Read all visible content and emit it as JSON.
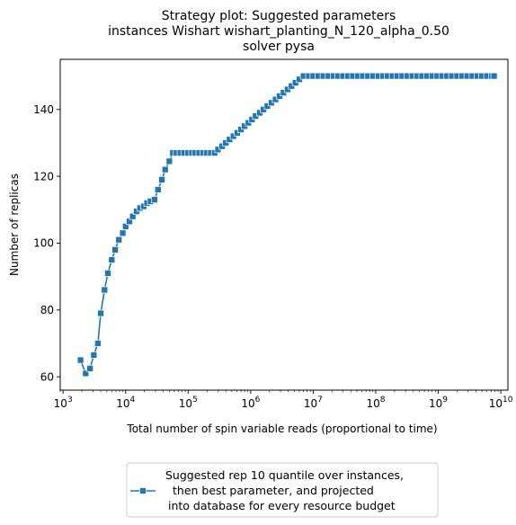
{
  "chart_data": {
    "type": "line",
    "title_lines": [
      "Strategy plot: Suggested parameters",
      "instances Wishart wishart_planting_N_120_alpha_0.50",
      "solver pysa"
    ],
    "xlabel": "Total number of spin variable reads (proportional to time)",
    "ylabel": "Number of replicas",
    "x_scale": "log",
    "xlim": [
      900,
      13000000000
    ],
    "ylim": [
      56,
      155
    ],
    "x_ticks": [
      {
        "base": "10",
        "exp": "3"
      },
      {
        "base": "10",
        "exp": "4"
      },
      {
        "base": "10",
        "exp": "5"
      },
      {
        "base": "10",
        "exp": "6"
      },
      {
        "base": "10",
        "exp": "7"
      },
      {
        "base": "10",
        "exp": "8"
      },
      {
        "base": "10",
        "exp": "9"
      },
      {
        "base": "10",
        "exp": "10"
      }
    ],
    "x_tick_values": [
      1000,
      10000,
      100000,
      1000000,
      10000000,
      100000000,
      1000000000,
      10000000000
    ],
    "y_ticks": [
      "60",
      "80",
      "100",
      "120",
      "140"
    ],
    "y_tick_values": [
      60,
      80,
      100,
      120,
      140
    ],
    "grid": false,
    "legend_position": "below",
    "series": [
      {
        "name_lines": [
          "Suggested rep 10 quantile over instances,",
          "then best parameter, and projected",
          "into database for every resource budget"
        ],
        "color": "#1f77b4",
        "marker": "square",
        "points": [
          [
            1900,
            65
          ],
          [
            2300,
            61
          ],
          [
            2700,
            62.5
          ],
          [
            3100,
            66.5
          ],
          [
            3600,
            70
          ],
          [
            4000,
            79
          ],
          [
            4600,
            86
          ],
          [
            5200,
            91
          ],
          [
            6000,
            95
          ],
          [
            6800,
            98
          ],
          [
            7800,
            101
          ],
          [
            9000,
            103
          ],
          [
            10000,
            105
          ],
          [
            11500,
            106.5
          ],
          [
            13000,
            108
          ],
          [
            15000,
            109.5
          ],
          [
            17000,
            110.5
          ],
          [
            19500,
            111
          ],
          [
            22000,
            112
          ],
          [
            25000,
            112.5
          ],
          [
            29000,
            113
          ],
          [
            33000,
            116
          ],
          [
            38000,
            119
          ],
          [
            43000,
            122
          ],
          [
            50000,
            124.5
          ],
          [
            57000,
            127
          ],
          [
            65000,
            127
          ],
          [
            75000,
            127
          ],
          [
            86000,
            127
          ],
          [
            100000,
            127
          ],
          [
            115000,
            127
          ],
          [
            130000,
            127
          ],
          [
            150000,
            127
          ],
          [
            175000,
            127
          ],
          [
            200000,
            127
          ],
          [
            230000,
            127
          ],
          [
            265000,
            127
          ],
          [
            300000,
            128
          ],
          [
            350000,
            129
          ],
          [
            400000,
            130
          ],
          [
            460000,
            131
          ],
          [
            530000,
            132
          ],
          [
            610000,
            133
          ],
          [
            700000,
            134
          ],
          [
            800000,
            135
          ],
          [
            920000,
            136
          ],
          [
            1050000,
            137
          ],
          [
            1200000,
            138
          ],
          [
            1400000,
            139
          ],
          [
            1600000,
            140
          ],
          [
            1850000,
            141
          ],
          [
            2150000,
            142
          ],
          [
            2500000,
            143
          ],
          [
            2900000,
            144
          ],
          [
            3350000,
            145
          ],
          [
            3900000,
            146
          ],
          [
            4500000,
            147
          ],
          [
            5200000,
            148
          ],
          [
            6000000,
            149
          ],
          [
            7000000,
            150
          ],
          [
            8500000,
            150
          ],
          [
            10000000,
            150
          ],
          [
            12000000,
            150
          ],
          [
            14500000,
            150
          ],
          [
            17500000,
            150
          ],
          [
            21000000,
            150
          ],
          [
            25000000,
            150
          ],
          [
            30000000,
            150
          ],
          [
            36000000,
            150
          ],
          [
            43000000,
            150
          ],
          [
            52000000,
            150
          ],
          [
            62000000,
            150
          ],
          [
            75000000,
            150
          ],
          [
            90000000,
            150
          ],
          [
            110000000,
            150
          ],
          [
            130000000,
            150
          ],
          [
            155000000,
            150
          ],
          [
            185000000,
            150
          ],
          [
            220000000,
            150
          ],
          [
            265000000,
            150
          ],
          [
            320000000,
            150
          ],
          [
            385000000,
            150
          ],
          [
            460000000,
            150
          ],
          [
            550000000,
            150
          ],
          [
            660000000,
            150
          ],
          [
            800000000,
            150
          ],
          [
            960000000,
            150
          ],
          [
            1150000000,
            150
          ],
          [
            1380000000,
            150
          ],
          [
            1650000000,
            150
          ],
          [
            2000000000,
            150
          ],
          [
            2400000000,
            150
          ],
          [
            2900000000,
            150
          ],
          [
            3500000000,
            150
          ],
          [
            4200000000,
            150
          ],
          [
            5000000000,
            150
          ],
          [
            6000000000,
            150
          ],
          [
            7200000000,
            150
          ],
          [
            7800000000,
            150
          ]
        ]
      }
    ]
  }
}
